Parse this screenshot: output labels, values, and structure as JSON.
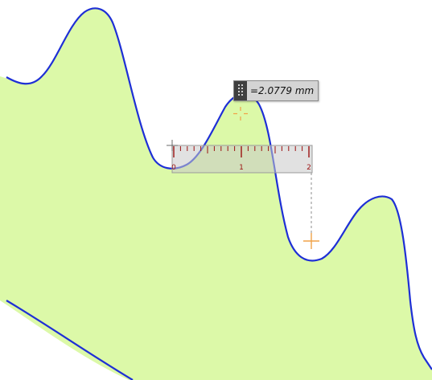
{
  "measurement": {
    "readout": "=2.0779 mm",
    "unit": "mm"
  },
  "ruler": {
    "labels": [
      "0",
      "1",
      "2"
    ]
  },
  "colors": {
    "background": "#ffffff",
    "shape_fill": "#dcf9a8",
    "outline": "#1e2fd6",
    "crosshair": "#f0a248",
    "ruler_tick": "#9b1111",
    "ruler_body": "#c8c8c8",
    "guide": "#8e8e8e"
  },
  "icons": {
    "tooltip_grip": "grip-handle-icon",
    "target": "crosshair-icon",
    "endpoint": "crosshair-icon"
  }
}
